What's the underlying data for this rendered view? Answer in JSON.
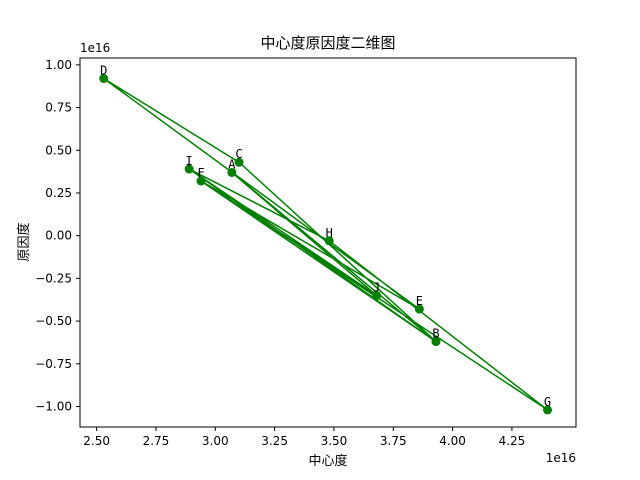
{
  "chart_data": {
    "type": "line",
    "title": "中心度原因度二维图",
    "xlabel": "中心度",
    "ylabel": "原因度",
    "x_offset_text": "1e16",
    "y_offset_text": "1e16",
    "xlim": [
      2.43,
      4.52
    ],
    "ylim": [
      -1.12,
      1.04
    ],
    "x_ticks": [
      2.5,
      2.75,
      3.0,
      3.25,
      3.5,
      3.75,
      4.0,
      4.25
    ],
    "x_tick_labels": [
      "2.50",
      "2.75",
      "3.00",
      "3.25",
      "3.50",
      "3.75",
      "4.00",
      "4.25"
    ],
    "y_ticks": [
      1.0,
      0.75,
      0.5,
      0.25,
      0.0,
      -0.25,
      -0.5,
      -0.75,
      -1.0
    ],
    "y_tick_labels": [
      "1.00",
      "0.75",
      "0.50",
      "0.25",
      "0.00",
      "−0.25",
      "−0.50",
      "−0.75",
      "−1.00"
    ],
    "grid": false,
    "color": "#008000",
    "points": [
      {
        "label": "D",
        "x": 2.53,
        "y": 0.92
      },
      {
        "label": "C",
        "x": 3.1,
        "y": 0.43
      },
      {
        "label": "I",
        "x": 2.89,
        "y": 0.39
      },
      {
        "label": "A",
        "x": 3.07,
        "y": 0.37
      },
      {
        "label": "F",
        "x": 2.94,
        "y": 0.32
      },
      {
        "label": "H",
        "x": 3.48,
        "y": -0.03
      },
      {
        "label": "J",
        "x": 3.68,
        "y": -0.35
      },
      {
        "label": "E",
        "x": 3.86,
        "y": -0.43
      },
      {
        "label": "B",
        "x": 3.93,
        "y": -0.62
      },
      {
        "label": "G",
        "x": 4.4,
        "y": -1.02
      }
    ],
    "path_order": [
      "A",
      "B",
      "C",
      "D",
      "E",
      "F",
      "G",
      "H",
      "I",
      "J",
      "F",
      "B",
      "I",
      "J",
      "A"
    ]
  }
}
